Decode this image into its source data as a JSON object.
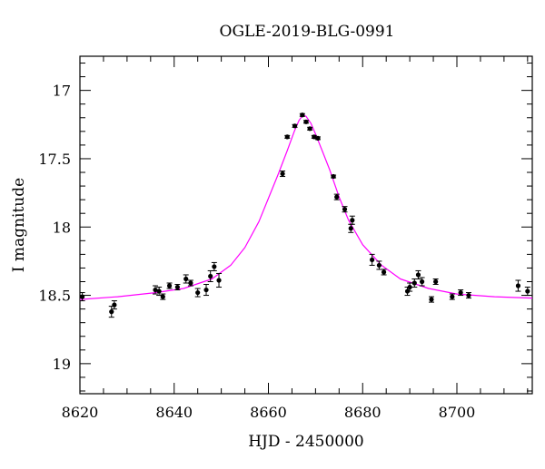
{
  "chart_data": {
    "type": "scatter",
    "title": "OGLE-2019-BLG-0991",
    "xlabel": "HJD - 2450000",
    "ylabel": "I magnitude",
    "xlim": [
      8620,
      8716
    ],
    "ylim": [
      19.22,
      16.75
    ],
    "y_inverted": true,
    "x_ticks": [
      8620,
      8640,
      8660,
      8680,
      8700
    ],
    "y_ticks": [
      17,
      17.5,
      18,
      18.5,
      19
    ],
    "x_tick_labels": [
      "8620",
      "8640",
      "8660",
      "8680",
      "8700"
    ],
    "y_tick_labels": [
      "17",
      "17.5",
      "18",
      "18.5",
      "19"
    ],
    "grid": false,
    "colors": {
      "points": "#000000",
      "model": "#ff00ff",
      "axes": "#000000"
    },
    "series": [
      {
        "kind": "points-with-errorbars",
        "x": [
          8620.5,
          8626.7,
          8627.3,
          8636.0,
          8636.8,
          8637.6,
          8639.0,
          8640.7,
          8642.5,
          8643.5,
          8645.0,
          8646.8,
          8647.7,
          8648.5,
          8649.5,
          8663.0,
          8664.0,
          8665.6,
          8667.2,
          8668.0,
          8668.8,
          8669.7,
          8670.5,
          8673.8,
          8674.5,
          8676.2,
          8677.5,
          8677.8,
          8682.0,
          8683.5,
          8684.5,
          8689.5,
          8690.0,
          8691.0,
          8691.8,
          8692.6,
          8694.6,
          8695.5,
          8699.0,
          8700.8,
          8702.5,
          8713.0,
          8715.0
        ],
        "y": [
          18.51,
          18.62,
          18.57,
          18.46,
          18.47,
          18.51,
          18.43,
          18.44,
          18.38,
          18.41,
          18.48,
          18.46,
          18.36,
          18.29,
          18.39,
          17.61,
          17.34,
          17.26,
          17.18,
          17.23,
          17.28,
          17.34,
          17.35,
          17.63,
          17.78,
          17.87,
          18.01,
          17.95,
          18.24,
          18.28,
          18.33,
          18.47,
          18.44,
          18.41,
          18.35,
          18.4,
          18.53,
          18.4,
          18.51,
          18.48,
          18.5,
          18.43,
          18.47
        ],
        "err": [
          0.03,
          0.04,
          0.03,
          0.03,
          0.03,
          0.02,
          0.02,
          0.02,
          0.03,
          0.02,
          0.03,
          0.04,
          0.04,
          0.03,
          0.05,
          0.02,
          0.01,
          0.01,
          0.01,
          0.01,
          0.01,
          0.01,
          0.01,
          0.01,
          0.02,
          0.02,
          0.03,
          0.03,
          0.04,
          0.03,
          0.02,
          0.03,
          0.03,
          0.03,
          0.03,
          0.03,
          0.02,
          0.02,
          0.02,
          0.02,
          0.02,
          0.04,
          0.03
        ]
      },
      {
        "kind": "model-curve",
        "x": [
          8620,
          8628,
          8636,
          8642,
          8648,
          8652,
          8655,
          8658,
          8660,
          8662,
          8664,
          8665.5,
          8666.5,
          8667.3,
          8668,
          8669,
          8670,
          8671.5,
          8673,
          8675,
          8677,
          8680,
          8684,
          8688,
          8694,
          8700,
          8708,
          8716
        ],
        "y": [
          18.53,
          18.51,
          18.48,
          18.45,
          18.38,
          18.28,
          18.15,
          17.96,
          17.79,
          17.62,
          17.44,
          17.3,
          17.22,
          17.18,
          17.19,
          17.24,
          17.32,
          17.45,
          17.58,
          17.78,
          17.95,
          18.13,
          18.28,
          18.38,
          18.45,
          18.49,
          18.51,
          18.52
        ]
      }
    ]
  }
}
